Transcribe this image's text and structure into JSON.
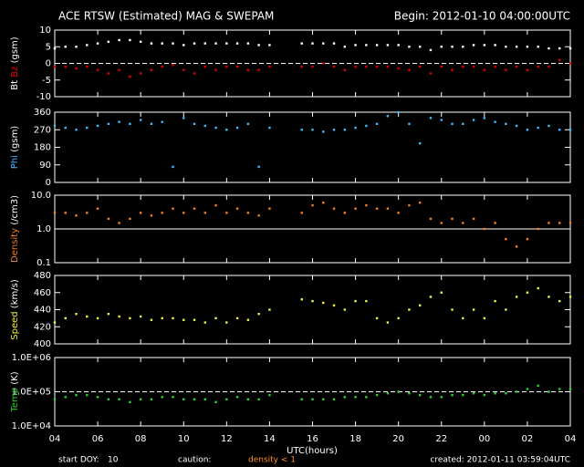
{
  "page": {
    "title": "ACE RTSW (Estimated) MAG & SWEPAM",
    "begin": "Begin: 2012-01-10 04:00:00UTC",
    "x_label": "UTC(hours)",
    "start_doy_label": "start DOY:",
    "start_doy": "10",
    "caution_label": "caution:",
    "caution_text": "density < 1",
    "caution_color": "#ff9020",
    "created": "created: 2012-01-11 03:59:04UTC"
  },
  "chart_data": [
    {
      "type": "scatter",
      "ylabel": "(gsm)",
      "ylim": [
        -10,
        10
      ],
      "yticks": [
        10,
        5,
        0,
        -5,
        -10
      ],
      "hline": 0,
      "hline_dash": true,
      "xlim": [
        4,
        28
      ],
      "xticks": [
        {
          "value": 4,
          "label": "04"
        },
        {
          "value": 6,
          "label": "06"
        },
        {
          "value": 8,
          "label": "08"
        },
        10,
        12,
        14,
        16,
        18,
        20,
        22,
        {
          "value": 24,
          "label": "00"
        },
        {
          "value": 26,
          "label": "02"
        },
        {
          "value": 28,
          "label": "04"
        }
      ],
      "x": [
        4,
        4.5,
        5,
        5.5,
        6,
        6.5,
        7,
        7.5,
        8,
        8.5,
        9,
        9.5,
        10,
        10.5,
        11,
        11.5,
        12,
        12.5,
        13,
        13.5,
        14,
        14.5,
        15,
        15.5,
        16,
        16.5,
        17,
        17.5,
        18,
        18.5,
        19,
        19.5,
        20,
        20.5,
        21,
        21.5,
        22,
        22.5,
        23,
        23.5,
        24,
        24.5,
        25,
        25.5,
        26,
        26.5,
        27,
        27.5,
        28
      ],
      "series": [
        {
          "name": "Bt",
          "color": "#ffffff",
          "values": [
            4.5,
            5,
            5,
            5.5,
            6,
            6.5,
            7,
            7,
            6.5,
            6,
            6,
            6,
            5.5,
            6,
            6,
            6,
            6,
            6,
            6,
            5.5,
            5.5,
            null,
            null,
            6,
            6,
            6,
            6,
            5,
            5.5,
            5.5,
            5.5,
            5.5,
            5.5,
            5,
            5,
            4,
            5,
            5,
            5,
            5.5,
            5.5,
            5.5,
            5,
            5,
            5,
            5,
            4.5,
            4.5,
            4.5
          ]
        },
        {
          "name": "Bz",
          "color": "#e00000",
          "values": [
            -1,
            -1,
            -1.5,
            -1,
            -2,
            -3,
            -2,
            -4,
            -3,
            -2,
            -1,
            -0.5,
            -2,
            -3,
            -1,
            -2,
            -1,
            -1,
            -2,
            -2,
            -1,
            null,
            null,
            -1,
            -1,
            0,
            -1,
            -2,
            -1,
            -1,
            -1,
            -1,
            -1.5,
            -2,
            -1,
            -3,
            -1,
            -2,
            -1,
            -1,
            -2,
            -1,
            -2,
            -1,
            -2,
            -1,
            -1,
            1,
            0
          ]
        }
      ]
    },
    {
      "type": "scatter",
      "ylabel": "(gsm)",
      "ylim": [
        0,
        360
      ],
      "yticks": [
        360,
        270,
        180,
        90,
        0
      ],
      "xlim": [
        4,
        28
      ],
      "x": [
        4,
        4.5,
        5,
        5.5,
        6,
        6.5,
        7,
        7.5,
        8,
        8.5,
        9,
        9.5,
        10,
        10.5,
        11,
        11.5,
        12,
        12.5,
        13,
        13.5,
        14,
        14.5,
        15,
        15.5,
        16,
        16.5,
        17,
        17.5,
        18,
        18.5,
        19,
        19.5,
        20,
        20.5,
        21,
        21.5,
        22,
        22.5,
        23,
        23.5,
        24,
        24.5,
        25,
        25.5,
        26,
        26.5,
        27,
        27.5,
        28
      ],
      "series": [
        {
          "name": "Phi",
          "color": "#40b8ff",
          "values": [
            290,
            280,
            270,
            280,
            290,
            300,
            310,
            300,
            320,
            300,
            310,
            80,
            330,
            300,
            290,
            280,
            270,
            280,
            300,
            80,
            280,
            null,
            null,
            270,
            270,
            260,
            270,
            270,
            280,
            290,
            300,
            340,
            360,
            300,
            200,
            330,
            320,
            300,
            300,
            320,
            330,
            310,
            300,
            290,
            270,
            280,
            290,
            270,
            270
          ]
        }
      ]
    },
    {
      "type": "scatter",
      "ylabel": "(/cm3)",
      "log": true,
      "ylim": [
        0.1,
        10
      ],
      "yticks": [
        {
          "value": 10,
          "label": "10.0"
        },
        {
          "value": 1,
          "label": "1.0"
        },
        0.1
      ],
      "hline": 1,
      "hline_dash": false,
      "xlim": [
        4,
        28
      ],
      "x": [
        4,
        4.5,
        5,
        5.5,
        6,
        6.5,
        7,
        7.5,
        8,
        8.5,
        9,
        9.5,
        10,
        10.5,
        11,
        11.5,
        12,
        12.5,
        13,
        13.5,
        14,
        14.5,
        15,
        15.5,
        16,
        16.5,
        17,
        17.5,
        18,
        18.5,
        19,
        19.5,
        20,
        20.5,
        21,
        21.5,
        22,
        22.5,
        23,
        23.5,
        24,
        24.5,
        25,
        25.5,
        26,
        26.5,
        27,
        27.5,
        28
      ],
      "series": [
        {
          "name": "Density",
          "color": "#f08020",
          "values": [
            3,
            3,
            2.5,
            3,
            4,
            2,
            1.5,
            2,
            3,
            2.5,
            3,
            4,
            3,
            4,
            3,
            5,
            3,
            4,
            3,
            2.5,
            4,
            null,
            null,
            3,
            5,
            6,
            4,
            3,
            4,
            5,
            4,
            4,
            3,
            5,
            6,
            2,
            1.5,
            2,
            1.5,
            2,
            1,
            1.5,
            0.5,
            0.3,
            0.5,
            1,
            1.5,
            1.5,
            1.5
          ]
        }
      ]
    },
    {
      "type": "scatter",
      "ylabel": "(km/s)",
      "ylim": [
        400,
        480
      ],
      "yticks": [
        480,
        460,
        440,
        420,
        400
      ],
      "xlim": [
        4,
        28
      ],
      "x": [
        4,
        4.5,
        5,
        5.5,
        6,
        6.5,
        7,
        7.5,
        8,
        8.5,
        9,
        9.5,
        10,
        10.5,
        11,
        11.5,
        12,
        12.5,
        13,
        13.5,
        14,
        14.5,
        15,
        15.5,
        16,
        16.5,
        17,
        17.5,
        18,
        18.5,
        19,
        19.5,
        20,
        20.5,
        21,
        21.5,
        22,
        22.5,
        23,
        23.5,
        24,
        24.5,
        25,
        25.5,
        26,
        26.5,
        27,
        27.5,
        28
      ],
      "series": [
        {
          "name": "Speed",
          "color": "#f0f040",
          "values": [
            425,
            430,
            435,
            432,
            430,
            435,
            432,
            430,
            432,
            428,
            430,
            430,
            428,
            428,
            425,
            430,
            425,
            430,
            428,
            435,
            440,
            null,
            null,
            452,
            450,
            448,
            445,
            440,
            450,
            450,
            430,
            425,
            430,
            440,
            445,
            455,
            460,
            440,
            430,
            440,
            430,
            450,
            440,
            455,
            460,
            465,
            455,
            450,
            455
          ]
        }
      ]
    },
    {
      "type": "scatter",
      "ylabel": "(K)",
      "log": true,
      "ylim": [
        10000,
        1000000
      ],
      "yticks": [
        {
          "value": 1000000,
          "label": "1.0E+06"
        },
        {
          "value": 100000,
          "label": "1.0E+05"
        },
        {
          "value": 10000,
          "label": "1.0E+04"
        }
      ],
      "hline": 100000,
      "hline_dash": true,
      "xlim": [
        4,
        28
      ],
      "x": [
        4,
        4.5,
        5,
        5.5,
        6,
        6.5,
        7,
        7.5,
        8,
        8.5,
        9,
        9.5,
        10,
        10.5,
        11,
        11.5,
        12,
        12.5,
        13,
        13.5,
        14,
        14.5,
        15,
        15.5,
        16,
        16.5,
        17,
        17.5,
        18,
        18.5,
        19,
        19.5,
        20,
        20.5,
        21,
        21.5,
        22,
        22.5,
        23,
        23.5,
        24,
        24.5,
        25,
        25.5,
        26,
        26.5,
        27,
        27.5,
        28
      ],
      "series": [
        {
          "name": "Temp",
          "color": "#30d030",
          "values": [
            60000,
            70000,
            80000,
            80000,
            70000,
            60000,
            60000,
            50000,
            60000,
            60000,
            70000,
            70000,
            60000,
            60000,
            60000,
            50000,
            60000,
            70000,
            60000,
            60000,
            80000,
            null,
            null,
            60000,
            60000,
            60000,
            60000,
            70000,
            70000,
            70000,
            80000,
            90000,
            100000,
            90000,
            80000,
            70000,
            70000,
            80000,
            80000,
            90000,
            80000,
            90000,
            90000,
            100000,
            120000,
            150000,
            100000,
            120000,
            120000
          ]
        }
      ]
    }
  ]
}
